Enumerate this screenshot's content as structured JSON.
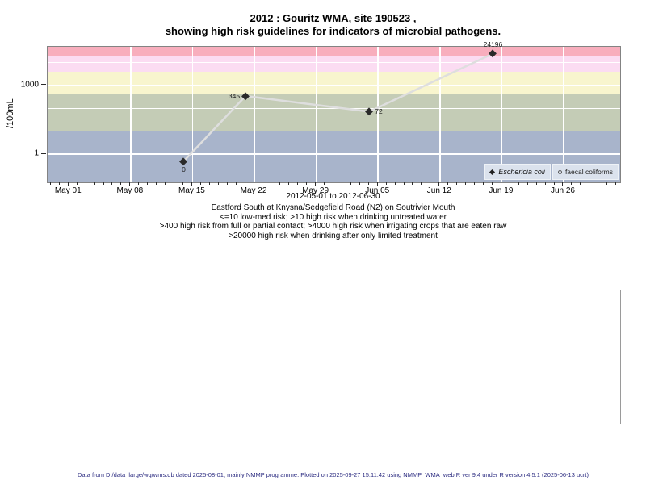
{
  "chart_data": {
    "type": "line",
    "title": "2012 : Gouritz WMA, site 190523 , showing high risk guidelines for indicators of microbial pathogens.",
    "title_lines": [
      "2012 : Gouritz WMA, site 190523 ,",
      "showing high risk guidelines for indicators of microbial pathogens."
    ],
    "ylabel": "/100mL",
    "xlabel": "2012-05-01 to 2012-06-30",
    "yscale": "log",
    "ylim": [
      0.06,
      48000
    ],
    "y_ticks": [
      {
        "value": 1000,
        "label": "1000"
      },
      {
        "value": 1,
        "label": "1"
      }
    ],
    "h_gridlines": [
      1,
      100,
      1000,
      10000
    ],
    "x_origin": "2012-05-01",
    "xlim_days": [
      -2.4,
      62.4
    ],
    "x_ticks": [
      {
        "date": "2012-05-01",
        "label": "May 01"
      },
      {
        "date": "2012-05-08",
        "label": "May 08"
      },
      {
        "date": "2012-05-15",
        "label": "May 15"
      },
      {
        "date": "2012-05-22",
        "label": "May 22"
      },
      {
        "date": "2012-05-29",
        "label": "May 29"
      },
      {
        "date": "2012-06-05",
        "label": "Jun 05"
      },
      {
        "date": "2012-06-12",
        "label": "Jun 12"
      },
      {
        "date": "2012-06-19",
        "label": "Jun 19"
      },
      {
        "date": "2012-06-26",
        "label": "Jun 26"
      }
    ],
    "grid": true,
    "legend_position": "bottom-right",
    "series": [
      {
        "name": "Eschericia coli",
        "marker": "filled-diamond",
        "marker_color": "#2a2a2a",
        "line_color": "#dedede",
        "points": [
          {
            "date": "2012-05-14",
            "value": 0,
            "plot_value": 0.5,
            "label": "0",
            "label_pos": "below"
          },
          {
            "date": "2012-05-21",
            "value": 345,
            "plot_value": 345,
            "label": "345",
            "label_pos": "left"
          },
          {
            "date": "2012-06-04",
            "value": 72,
            "plot_value": 72,
            "label": "72",
            "label_pos": "right"
          },
          {
            "date": "2012-06-18",
            "value": 24196,
            "plot_value": 24196,
            "label": "24196",
            "label_pos": "above"
          }
        ]
      },
      {
        "name": "faecal coliforms",
        "marker": "open-circle",
        "marker_color": "#444444",
        "points": []
      }
    ],
    "bands": [
      {
        "range": "<=10",
        "risk": "low-med risk",
        "from": null,
        "to": 10,
        "color": "#a8b4cb"
      },
      {
        "range": ">10",
        "risk": "high risk when drinking untreated water",
        "from": 10,
        "to": 400,
        "color": "#c4ccb6"
      },
      {
        "range": ">400",
        "risk": "high risk from full or partial contact",
        "from": 400,
        "to": 4000,
        "color": "#f8f5ce"
      },
      {
        "range": ">4000",
        "risk": "high risk when irrigating crops that are eaten raw",
        "from": 4000,
        "to": 20000,
        "color": "#fbdcf2"
      },
      {
        "range": ">20000",
        "risk": "high risk when drinking after only limited treatment",
        "from": 20000,
        "to": null,
        "color": "#f8aebd"
      }
    ]
  },
  "captions": [
    "Eastford South at Knysna/Sedgefield Road (N2) on Soutrivier Mouth",
    "<=10 low-med risk; >10 high risk when drinking untreated water",
    ">400 high risk from full or partial contact; >4000 high risk when irrigating crops that are eaten raw",
    ">20000 high risk when drinking after only limited treatment"
  ],
  "footer": "Data from D:/data_large/wq/wms.db dated 2025-08-01, mainly NMMP programme. Plotted on 2025-09-27 15:11:42 using NMMP_WMA_web.R ver 9.4 under R version 4.5.1 (2025-06-13 ucrt)"
}
